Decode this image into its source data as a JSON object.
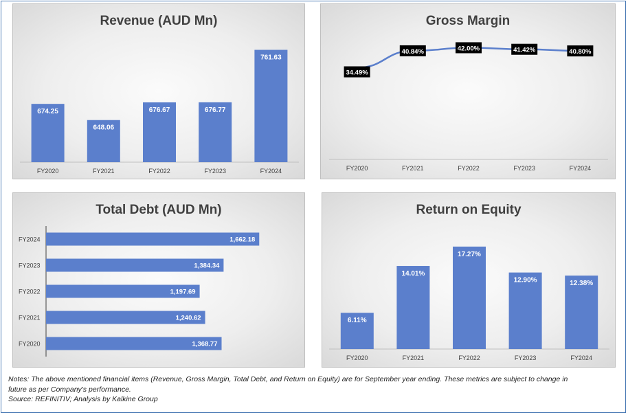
{
  "colors": {
    "bar": "#5b7fcc",
    "line": "#5b7fcc",
    "label_bg": "#000000",
    "title": "#404040"
  },
  "chart_data": [
    {
      "id": "revenue",
      "type": "bar",
      "title": "Revenue (AUD Mn)",
      "categories": [
        "FY2020",
        "FY2021",
        "FY2022",
        "FY2023",
        "FY2024"
      ],
      "values": [
        674.25,
        648.06,
        676.67,
        676.77,
        761.63
      ],
      "labels": [
        "674.25",
        "648.06",
        "676.67",
        "676.77",
        "761.63"
      ],
      "ylim": [
        580,
        780
      ],
      "grid": false
    },
    {
      "id": "gross-margin",
      "type": "line",
      "title": "Gross Margin",
      "categories": [
        "FY2020",
        "FY2021",
        "FY2022",
        "FY2023",
        "FY2024"
      ],
      "values": [
        34.49,
        40.84,
        42.0,
        41.42,
        40.8
      ],
      "labels": [
        "34.49%",
        "40.84%",
        "42.00%",
        "41.42%",
        "40.80%"
      ],
      "ylim": [
        0,
        46
      ],
      "grid": false
    },
    {
      "id": "total-debt",
      "type": "bar",
      "orientation": "horizontal",
      "title": "Total Debt (AUD Mn)",
      "categories": [
        "FY2024",
        "FY2023",
        "FY2022",
        "FY2021",
        "FY2020"
      ],
      "values": [
        1662.18,
        1384.34,
        1197.69,
        1240.62,
        1368.77
      ],
      "labels": [
        "1,662.18",
        "1,384.34",
        "1,197.69",
        "1,240.62",
        "1,368.77"
      ],
      "xlim": [
        0,
        1950
      ],
      "grid": false
    },
    {
      "id": "roe",
      "type": "bar",
      "title": "Return on Equity",
      "categories": [
        "FY2020",
        "FY2021",
        "FY2022",
        "FY2023",
        "FY2024"
      ],
      "values": [
        6.11,
        14.01,
        17.27,
        12.9,
        12.38
      ],
      "labels": [
        "6.11%",
        "14.01%",
        "17.27%",
        "12.90%",
        "12.38%"
      ],
      "ylim": [
        0,
        20.5
      ],
      "grid": false
    }
  ],
  "notes": {
    "line1": "Notes: The above mentioned financial items (Revenue, Gross Margin, Total Debt, and Return on Equity) are for September year ending. These metrics are subject to change in",
    "line2": "future as per Company's performance.",
    "line3": "Source: REFINITIV; Analysis by Kalkine Group"
  }
}
